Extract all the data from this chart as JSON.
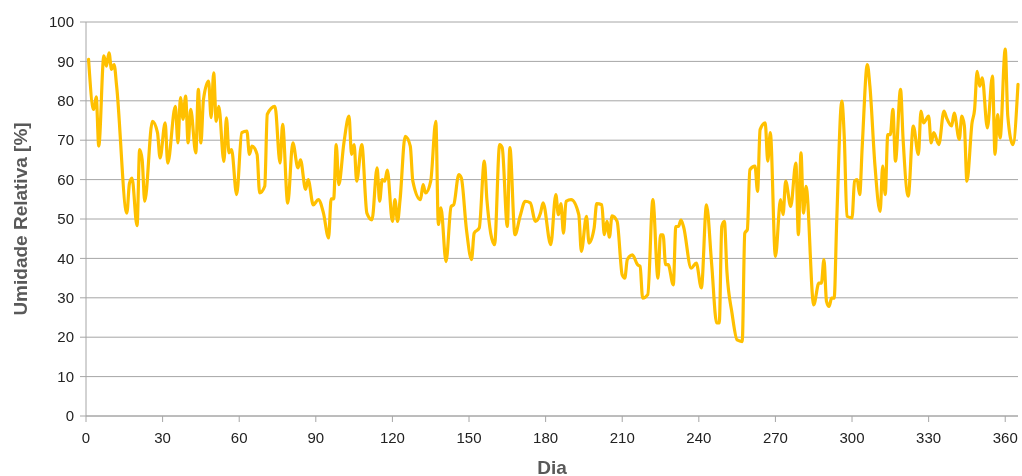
{
  "chart_data": {
    "type": "line",
    "xlabel": "Dia",
    "ylabel": "Umidade Relativa [%]",
    "xlim": [
      0,
      365
    ],
    "xticks": [
      0,
      30,
      60,
      90,
      120,
      150,
      180,
      210,
      240,
      270,
      300,
      330,
      360
    ],
    "ylim": [
      0,
      100
    ],
    "yticks": [
      0,
      10,
      20,
      30,
      40,
      50,
      60,
      70,
      80,
      90,
      100
    ],
    "grid": "y",
    "marker": "none",
    "line_style": "solid",
    "series": [
      {
        "color": "#ffc000",
        "x": [
          1,
          3,
          4,
          5,
          7,
          8,
          9,
          10,
          11,
          12,
          16,
          17,
          18,
          20,
          21,
          22,
          23,
          26,
          28,
          29,
          31,
          32,
          35,
          36,
          37,
          38,
          39,
          40,
          41,
          43,
          44,
          45,
          46,
          48,
          49,
          50,
          51,
          52,
          54,
          55,
          56,
          57,
          59,
          61,
          63,
          64,
          65,
          67,
          68,
          70,
          71,
          74,
          76,
          77,
          79,
          81,
          83,
          84,
          86,
          87,
          89,
          91,
          93,
          95,
          96,
          97,
          98,
          99,
          101,
          103,
          104,
          105,
          106,
          108,
          110,
          112,
          114,
          115,
          116,
          117,
          118,
          120,
          121,
          122,
          123,
          125,
          127,
          128,
          131,
          132,
          133,
          135,
          137,
          138,
          139,
          141,
          143,
          144,
          146,
          147,
          149,
          151,
          152,
          154,
          156,
          157,
          160,
          162,
          163,
          165,
          166,
          168,
          170,
          172,
          174,
          176,
          178,
          179,
          182,
          184,
          185,
          186,
          187,
          188,
          190,
          193,
          194,
          196,
          197,
          199,
          200,
          202,
          203,
          204,
          205,
          206,
          208,
          210,
          211,
          212,
          214,
          216,
          217,
          218,
          220,
          222,
          224,
          225,
          226,
          227,
          228,
          230,
          231,
          232,
          233,
          234,
          237,
          239,
          241,
          243,
          245,
          247,
          248,
          249,
          250,
          251,
          253,
          255,
          257,
          258,
          259,
          260,
          262,
          263,
          264,
          266,
          267,
          268,
          270,
          272,
          273,
          274,
          276,
          278,
          279,
          280,
          281,
          282,
          285,
          287,
          288,
          289,
          290,
          291,
          292,
          293,
          294,
          296,
          297,
          298,
          300,
          301,
          302,
          303,
          304,
          306,
          307,
          309,
          311,
          312,
          313,
          314,
          315,
          316,
          317,
          319,
          320,
          322,
          324,
          326,
          327,
          328,
          330,
          331,
          332,
          334,
          336,
          337,
          339,
          340,
          342,
          343,
          344,
          345,
          347,
          348,
          349,
          350,
          351,
          353,
          355,
          356,
          357,
          358,
          360,
          361,
          363,
          365
        ],
        "values": [
          90.5,
          77.8,
          81,
          68.5,
          91.4,
          88.8,
          92.2,
          88,
          89.2,
          83.7,
          51.5,
          59,
          60.4,
          48.3,
          67.6,
          65,
          54.5,
          74.8,
          71.9,
          65.5,
          74.4,
          64.2,
          78.6,
          69.3,
          80.8,
          75.3,
          81.2,
          69.3,
          77.8,
          66.8,
          82.9,
          69.3,
          80.3,
          85,
          75.7,
          87.1,
          74.8,
          78.6,
          64.6,
          75.7,
          66.8,
          67.6,
          56.2,
          71.9,
          72.3,
          66.4,
          68.5,
          66.4,
          56.6,
          58.3,
          76.6,
          78.6,
          64.2,
          74,
          54,
          69.3,
          63,
          65,
          57.5,
          60,
          53.6,
          54.9,
          51.5,
          45.2,
          55.1,
          55.1,
          68.9,
          58.7,
          69.3,
          76.1,
          66.4,
          68.9,
          59.6,
          68.9,
          51.5,
          49.8,
          63,
          54.5,
          60,
          59.6,
          62.4,
          49.4,
          54.9,
          49.4,
          54.9,
          71,
          68.5,
          59.6,
          54.9,
          58.7,
          56.6,
          59.6,
          74.8,
          48.6,
          52.8,
          39.2,
          53.2,
          53.6,
          61.3,
          60.4,
          47.3,
          39.7,
          46.4,
          47.7,
          64.7,
          54.9,
          43.5,
          68.9,
          68.1,
          48.1,
          68.1,
          46,
          50.7,
          54.5,
          54.1,
          49.4,
          51.5,
          54.1,
          43.5,
          56.2,
          51.1,
          53.9,
          46.4,
          54.5,
          54.9,
          51.1,
          41.8,
          50.7,
          43.9,
          47.7,
          53.9,
          53.6,
          46,
          49.4,
          45.4,
          50.8,
          49.4,
          35.8,
          35,
          39.7,
          40.9,
          38.4,
          38,
          29.9,
          30.8,
          54.9,
          35,
          46,
          46,
          38.4,
          38.4,
          33.3,
          48.1,
          48.1,
          49.7,
          48.1,
          37.5,
          38.8,
          32.5,
          53.6,
          38.8,
          23.6,
          23.6,
          48.1,
          49.4,
          36.7,
          26.1,
          19.3,
          18.9,
          46.4,
          47.3,
          62.5,
          63.4,
          57,
          72.7,
          74.4,
          64.7,
          71.9,
          40.5,
          54.9,
          51.1,
          59.6,
          53.2,
          64.2,
          46,
          66.8,
          51.5,
          58.3,
          28.2,
          33.7,
          33.7,
          39.7,
          29.1,
          27.8,
          29.9,
          29.9,
          49.4,
          79.9,
          70.2,
          50.7,
          50.3,
          59.6,
          60,
          56.2,
          68.5,
          89.2,
          83.7,
          63.4,
          51.9,
          63.4,
          56.2,
          71.4,
          71.4,
          77.8,
          64.7,
          82.9,
          70.2,
          55.8,
          73.6,
          66.4,
          77.4,
          74.4,
          76.1,
          69.3,
          71.9,
          68.9,
          77.4,
          75.7,
          73.6,
          76.9,
          70.2,
          76.1,
          73.6,
          59.6,
          74.4,
          77.8,
          87.5,
          83.7,
          85.8,
          73.1,
          86.3,
          66.4,
          76.5,
          70.6,
          93.1,
          76.1,
          68.9,
          84.2
        ]
      }
    ]
  }
}
